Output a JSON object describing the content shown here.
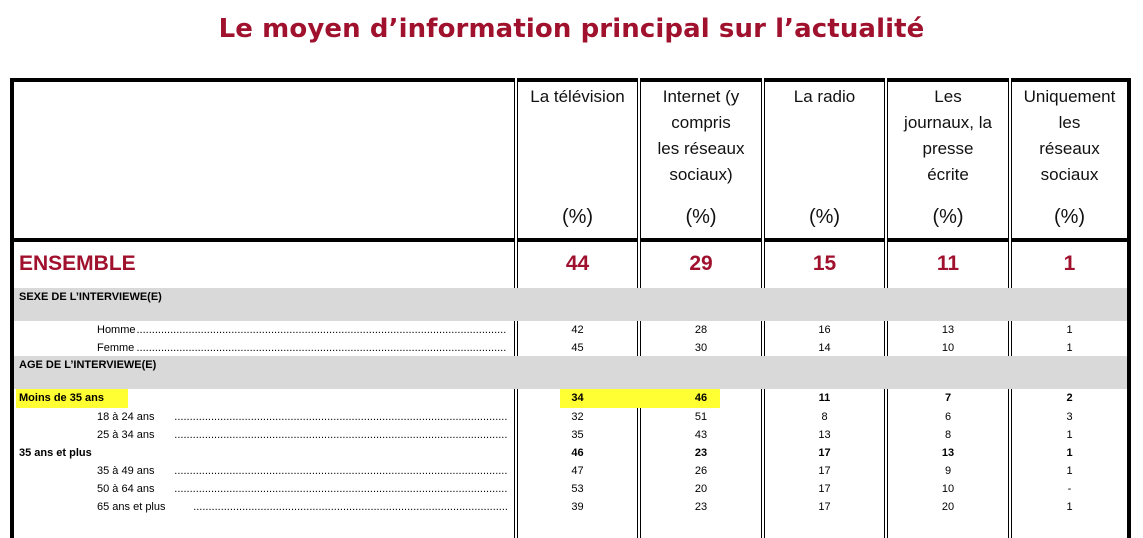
{
  "title": "Le moyen d’information principal sur l’actualité",
  "columns": [
    {
      "lines": [
        "La télévision"
      ],
      "unit": "(%)"
    },
    {
      "lines": [
        "Internet (y",
        "compris",
        "les réseaux",
        "sociaux)"
      ],
      "unit": "(%)"
    },
    {
      "lines": [
        "La radio"
      ],
      "unit": "(%)"
    },
    {
      "lines": [
        "Les",
        "journaux, la",
        "presse",
        "écrite"
      ],
      "unit": "(%)"
    },
    {
      "lines": [
        "Uniquement",
        "les",
        "réseaux",
        "sociaux"
      ],
      "unit": "(%)"
    }
  ],
  "ensemble": {
    "label": "ENSEMBLE",
    "values": [
      "44",
      "29",
      "15",
      "11",
      "1"
    ]
  },
  "sections": [
    {
      "title": "SEXE DE L’INTERVIEWE(E)",
      "rows": [
        {
          "label": "Homme",
          "values": [
            "42",
            "28",
            "16",
            "13",
            "1"
          ],
          "bold": false,
          "indent": true
        },
        {
          "label": "Femme",
          "values": [
            "45",
            "30",
            "14",
            "10",
            "1"
          ],
          "bold": false,
          "indent": true
        }
      ]
    },
    {
      "title": "AGE DE L’INTERVIEWE(E)",
      "rows": [
        {
          "label": "Moins de 35 ans",
          "values": [
            "34",
            "46",
            "11",
            "7",
            "2"
          ],
          "bold": true,
          "indent": false,
          "highlight": true
        },
        {
          "label": "18 à 24 ans",
          "values": [
            "32",
            "51",
            "8",
            "6",
            "3"
          ],
          "bold": false,
          "indent": true
        },
        {
          "label": "25 à 34 ans",
          "values": [
            "35",
            "43",
            "13",
            "8",
            "1"
          ],
          "bold": false,
          "indent": true
        },
        {
          "label": "35 ans et plus",
          "values": [
            "46",
            "23",
            "17",
            "13",
            "1"
          ],
          "bold": true,
          "indent": false
        },
        {
          "label": "35 à 49 ans",
          "values": [
            "47",
            "26",
            "17",
            "9",
            "1"
          ],
          "bold": false,
          "indent": true
        },
        {
          "label": "50 à 64 ans",
          "values": [
            "53",
            "20",
            "17",
            "10",
            "-"
          ],
          "bold": false,
          "indent": true
        },
        {
          "label": "65 ans et plus",
          "values": [
            "39",
            "23",
            "17",
            "20",
            "1"
          ],
          "bold": false,
          "indent": true
        }
      ]
    }
  ],
  "colors": {
    "title": "#a0112e",
    "highlight": "#ffff33",
    "section_bg": "#d9d9d9"
  }
}
